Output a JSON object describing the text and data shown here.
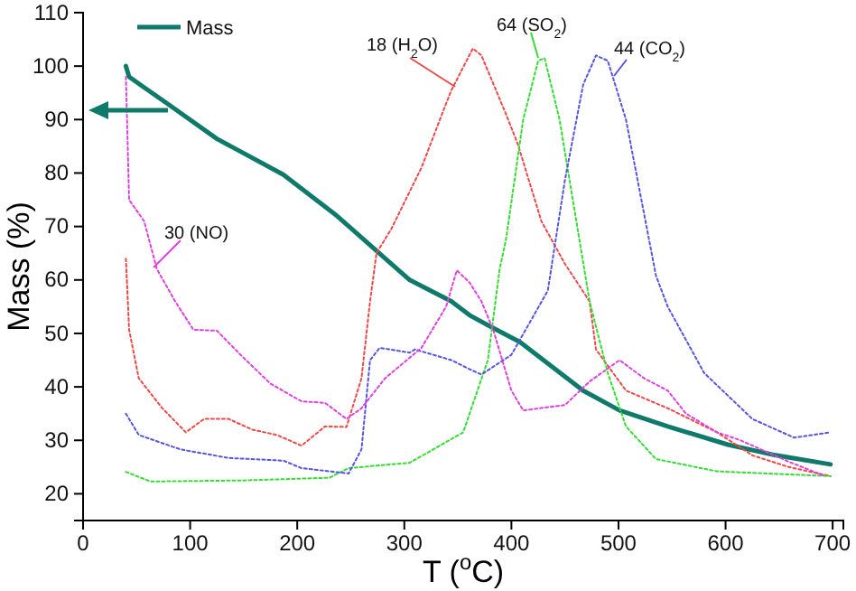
{
  "chart_data": {
    "type": "line",
    "xlabel": "T ($^{o}$C)",
    "ylabel": "Mass (%)",
    "xlim": [
      0,
      710
    ],
    "ylim": [
      15,
      110
    ],
    "xticks": [
      0,
      100,
      200,
      300,
      400,
      500,
      600,
      700
    ],
    "yticks": [
      20,
      30,
      40,
      50,
      60,
      70,
      80,
      90,
      100,
      110
    ],
    "legend": "top left",
    "series": [
      {
        "name": "Mass",
        "color": "#0f7a6a",
        "line_style": "solid",
        "x": [
          40,
          43,
          57,
          80,
          125,
          187,
          237,
          271,
          305,
          344,
          361,
          383,
          408,
          467,
          501,
          546,
          602,
          647,
          698
        ],
        "values": [
          100,
          98,
          96,
          92.8,
          86.4,
          79.7,
          72,
          66,
          60,
          56,
          53.4,
          51,
          48.4,
          39.3,
          35.6,
          32.6,
          29.2,
          27.2,
          25.5
        ]
      },
      {
        "name": "18 (H$_{2}$O)",
        "color": "#f04848",
        "line_style": "dotted",
        "x": [
          40,
          43,
          52,
          74,
          96,
          113,
          136,
          158,
          181,
          204,
          226,
          246,
          260,
          268,
          274,
          288,
          316,
          339,
          344,
          364,
          372,
          395,
          406,
          428,
          450,
          473,
          479,
          507,
          546,
          592,
          625,
          659,
          698
        ],
        "values": [
          64,
          50.7,
          41.6,
          36,
          31.5,
          34,
          34,
          32,
          31,
          29,
          32.6,
          32.5,
          41.6,
          56,
          65,
          69.6,
          81,
          93,
          95.5,
          103.3,
          102,
          91,
          85.4,
          71,
          63,
          56,
          47,
          39.3,
          36,
          31.5,
          27.2,
          25,
          23.3
        ]
      },
      {
        "name": "64 (SO$_{2}$)",
        "color": "#33dd33",
        "line_style": "dotted",
        "x": [
          40,
          63,
          150,
          230,
          248,
          305,
          355,
          378,
          389,
          395,
          411,
          425,
          431,
          445,
          459,
          473,
          490,
          507,
          535,
          592,
          698
        ],
        "values": [
          24.1,
          22.3,
          22.5,
          23,
          24.8,
          25.8,
          31.5,
          45,
          62,
          67.6,
          90,
          101,
          101.5,
          90,
          73,
          56,
          42.6,
          32.6,
          26.5,
          24.2,
          23.3
        ]
      },
      {
        "name": "44 (CO$_{2}$)",
        "color": "#5555e0",
        "line_style": "dotted",
        "x": [
          40,
          52,
          91,
          136,
          187,
          204,
          248,
          260,
          268,
          277,
          305,
          310,
          344,
          361,
          372,
          400,
          434,
          450,
          467,
          479,
          490,
          507,
          535,
          546,
          580,
          625,
          664,
          698
        ],
        "values": [
          35,
          31,
          28.3,
          26.7,
          26.2,
          24.8,
          23.8,
          28.3,
          45,
          47.3,
          46.4,
          47,
          45,
          43.3,
          42.3,
          46,
          58,
          78.7,
          96.5,
          102,
          101,
          90,
          60.8,
          55,
          42.6,
          34,
          30.5,
          31.5
        ]
      },
      {
        "name": "30 (NO)",
        "color": "#e040e0",
        "line_style": "dotted",
        "x": [
          40,
          43,
          57,
          69,
          86,
          103,
          125,
          147,
          175,
          204,
          226,
          246,
          260,
          282,
          316,
          339,
          349,
          361,
          372,
          383,
          400,
          411,
          450,
          473,
          501,
          524,
          546,
          563,
          592,
          614,
          659,
          693
        ],
        "values": [
          98,
          75,
          71,
          62,
          56,
          50.7,
          50.5,
          46,
          40.6,
          37.3,
          37,
          34,
          36,
          41.6,
          47.3,
          55,
          61.8,
          59.5,
          56,
          50.7,
          39.3,
          35.6,
          36.6,
          41,
          45,
          41.6,
          39.3,
          35,
          31.5,
          30,
          26,
          23.3
        ]
      }
    ]
  }
}
